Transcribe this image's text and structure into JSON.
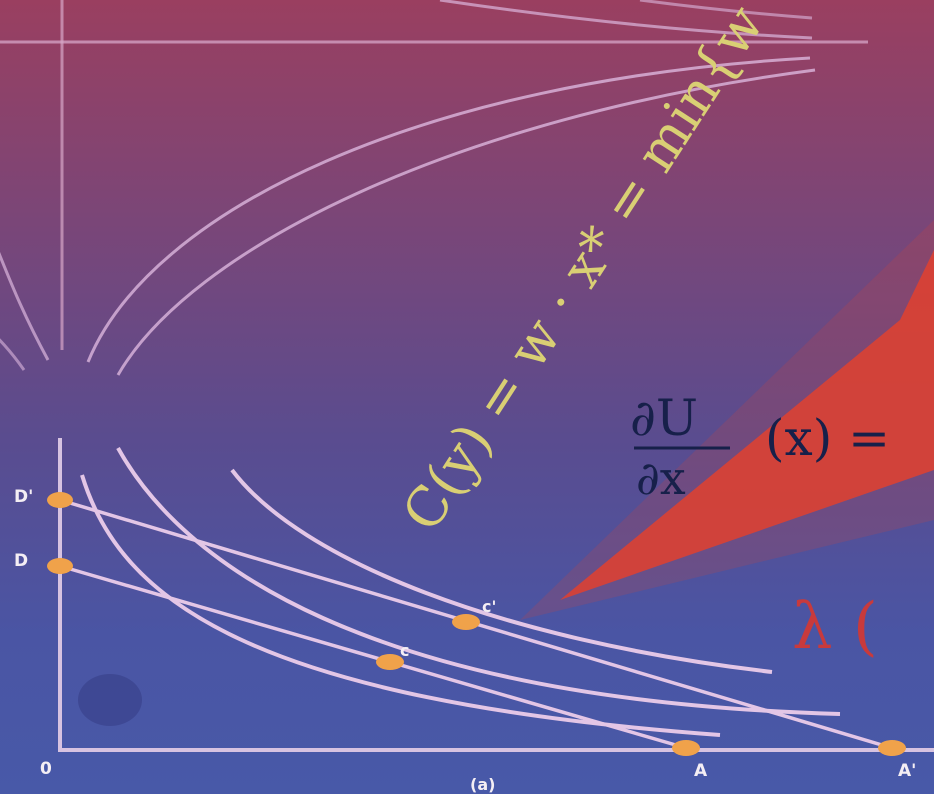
{
  "colors": {
    "curve": "#e3c6e6",
    "axis": "#d7c3e1",
    "point": "#f0a24a",
    "equation_yellow": "#d9cf74",
    "equation_dark": "#17204a",
    "red_wedge": "#e2412f",
    "lambda_red": "#c83a3c"
  },
  "equations": {
    "cost_function": "C(y) = w · x* = min{w · x}",
    "partial_top": "∂U",
    "partial_arg": "(x) =",
    "partial_bottom": "∂x",
    "lambda": "λ ("
  },
  "labels": {
    "origin": "0",
    "d_upper": "D'",
    "d_lower": "D",
    "a": "A",
    "a_prime": "A'",
    "c_lower": "c",
    "c_upper": "c'",
    "panel": "(a)"
  }
}
